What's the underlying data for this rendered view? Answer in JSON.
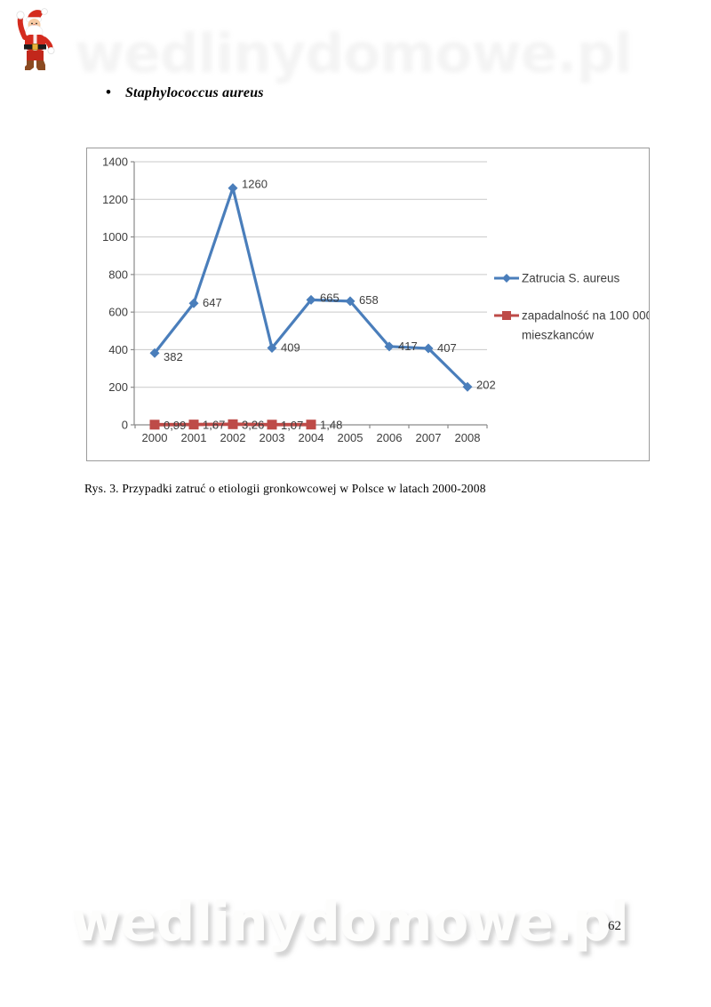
{
  "page": {
    "bullet_text": "Staphylococcus aureus",
    "caption": "Rys. 3. Przypadki zatruć o etiologii gronkowcowej w Polsce w latach 2000-2008",
    "page_number": "62",
    "watermark": "wedlinydomowe.pl"
  },
  "icons": {
    "santa": "santa-claus-clipart"
  },
  "chart_data": {
    "type": "line",
    "title": "",
    "xlabel": "",
    "ylabel": "",
    "categories": [
      "2000",
      "2001",
      "2002",
      "2003",
      "2004",
      "2005",
      "2006",
      "2007",
      "2008"
    ],
    "series": [
      {
        "name": "Zatrucia S. aureus",
        "color": "#4A7EBB",
        "marker": "diamond",
        "values": [
          382,
          647,
          1260,
          409,
          665,
          658,
          417,
          407,
          202
        ],
        "labels": [
          "382",
          "647",
          "1260",
          "409",
          "665",
          "658",
          "417",
          "407",
          "202"
        ]
      },
      {
        "name": "zapadalność na 100 000 mieszkanców",
        "color": "#BE4B48",
        "marker": "square",
        "values": [
          0.99,
          1.67,
          3.26,
          1.07,
          1.48
        ],
        "labels": [
          "0,99",
          "1,67",
          "3,26",
          "1,07",
          "1,48"
        ]
      }
    ],
    "legend_lines": [
      [
        "Zatrucia S. aureus"
      ],
      [
        "zapadalność na 100 000",
        "mieszkanców"
      ]
    ],
    "ylim": [
      0,
      1400
    ],
    "ytick_step": 200,
    "grid": true,
    "legend_position": "right",
    "colors": {
      "grid": "#C9C9C9",
      "axis": "#8A8A8A",
      "label": "#3D3D3D"
    }
  }
}
